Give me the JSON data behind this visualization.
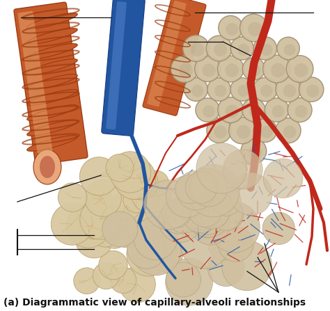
{
  "caption": "(a) Diagrammatic view of capillary-alveoli relationships",
  "caption_fontsize": 10,
  "bg_color": "#ffffff",
  "fig_width": 4.74,
  "fig_height": 4.47,
  "dpi": 100,
  "bronchiole_color": "#c45a2a",
  "bronchiole_ring_color": "#9b3a10",
  "bronchiole_inner": "#e8a87c",
  "blue_vessel": "#2255a0",
  "red_vessel": "#c0281c",
  "alveoli_color": "#d8c9a8",
  "alveoli_edge": "#b8a888",
  "alveoli_inner": "#c8b888",
  "honeycomb_color": "#d0c0a0",
  "honeycomb_edge": "#a09070",
  "line_color": "#111111",
  "line_width": 0.9
}
